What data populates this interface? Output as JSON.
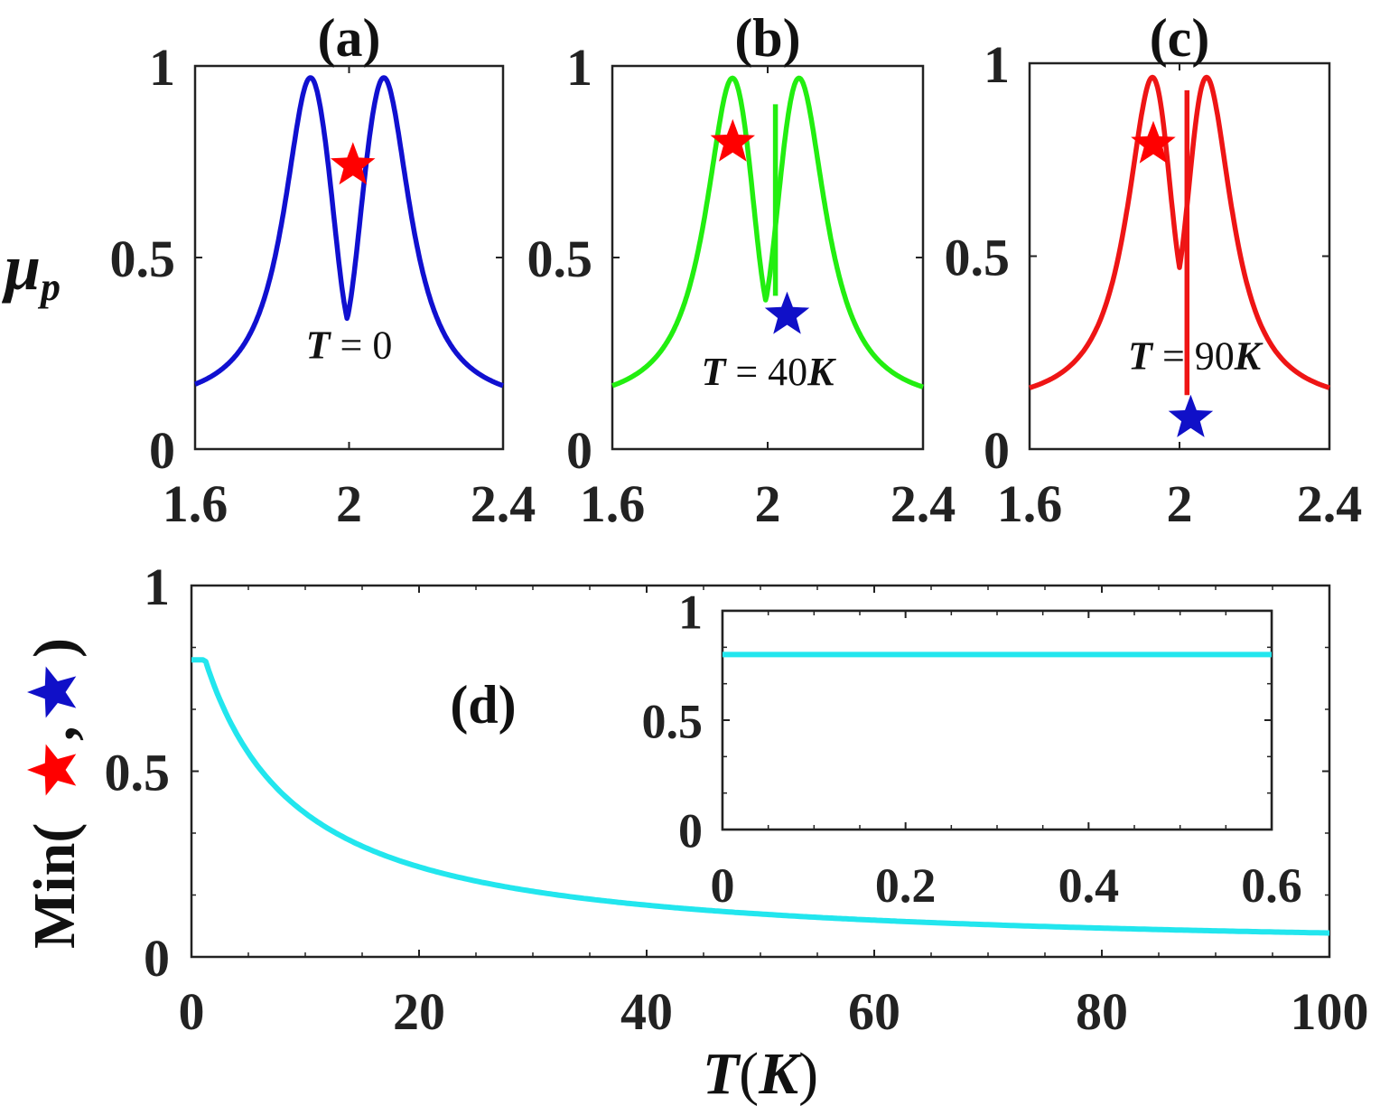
{
  "chart_data": [
    {
      "id": "a",
      "type": "line",
      "title": "(a)",
      "ylabel_main": "μ",
      "ylabel_sub": "p",
      "xlim": [
        1.6,
        2.4
      ],
      "ylim": [
        0,
        1
      ],
      "xticks": [
        "1.6",
        "2",
        "2.4"
      ],
      "yticks": [
        "0",
        "0.5",
        "1"
      ],
      "color": "#1010d0",
      "series": [
        {
          "name": "T=0",
          "peak1": 1.9,
          "peak2": 2.09,
          "width": 0.085,
          "height": 0.97,
          "cusp": null
        }
      ],
      "annotation": {
        "var": "T",
        "rest": " = 0",
        "x": 2.0,
        "y": 0.27
      },
      "markers": [
        {
          "name": "red-star",
          "x": 2.01,
          "y": 0.74,
          "color": "#ff0000"
        }
      ]
    },
    {
      "id": "b",
      "type": "line",
      "title": "(b)",
      "xlim": [
        1.6,
        2.4
      ],
      "ylim": [
        0,
        1
      ],
      "xticks": [
        "1.6",
        "2",
        "2.4"
      ],
      "yticks": [
        "0",
        "0.5",
        "1"
      ],
      "color": "#22ee10",
      "series": [
        {
          "name": "T=40K",
          "peak1": 1.91,
          "peak2": 2.08,
          "width": 0.085,
          "height": 0.97,
          "cusp": {
            "x": 2.02,
            "top": 0.9,
            "bottom": 0.4
          }
        }
      ],
      "annotation": {
        "var": "T",
        "rest": " = 40",
        "var2": "K",
        "x": 2.0,
        "y": 0.2
      },
      "markers": [
        {
          "name": "red-star",
          "x": 1.91,
          "y": 0.8,
          "color": "#ff0000"
        },
        {
          "name": "blue-star",
          "x": 2.05,
          "y": 0.35,
          "color": "#1010c8"
        }
      ]
    },
    {
      "id": "c",
      "type": "line",
      "title": "(c)",
      "xlim": [
        1.6,
        2.4
      ],
      "ylim": [
        0,
        1
      ],
      "xticks": [
        "1.6",
        "2",
        "2.4"
      ],
      "yticks": [
        "0",
        "0.5",
        "1"
      ],
      "color": "#ee1515",
      "series": [
        {
          "name": "T=90K",
          "peak1": 1.93,
          "peak2": 2.07,
          "width": 0.085,
          "height": 0.97,
          "cusp": {
            "x": 2.02,
            "top": 0.93,
            "bottom": 0.14
          }
        }
      ],
      "annotation": {
        "var": "T",
        "rest": " = 90",
        "var2": "K",
        "x": 2.04,
        "y": 0.24
      },
      "markers": [
        {
          "name": "red-star",
          "x": 1.93,
          "y": 0.79,
          "color": "#ff0000"
        },
        {
          "name": "blue-star",
          "x": 2.03,
          "y": 0.08,
          "color": "#1010c8"
        }
      ]
    },
    {
      "id": "d",
      "type": "line",
      "title": "(d)",
      "ylabel_prefix": "Min(",
      "ylabel_comma": ",",
      "ylabel_suffix": ")",
      "xlabel_var": "T",
      "xlabel_unit": "K",
      "xlim": [
        0,
        100
      ],
      "ylim": [
        0,
        1
      ],
      "xticks": [
        "0",
        "20",
        "40",
        "60",
        "80",
        "100"
      ],
      "yticks": [
        "0",
        "0.5",
        "1"
      ],
      "color": "#22e6ee",
      "series": [
        {
          "name": "Min(red-star, blue-star) vs T",
          "plateau": 0.8,
          "plateau_end": 1.2,
          "a": 0.08,
          "b": 0.00057
        }
      ],
      "inset": {
        "xlim": [
          0,
          0.6
        ],
        "ylim": [
          0,
          1
        ],
        "xticks": [
          "0",
          "0.2",
          "0.4",
          "0.6"
        ],
        "yticks": [
          "0",
          "0.5",
          "1"
        ],
        "value": 0.8
      }
    }
  ]
}
